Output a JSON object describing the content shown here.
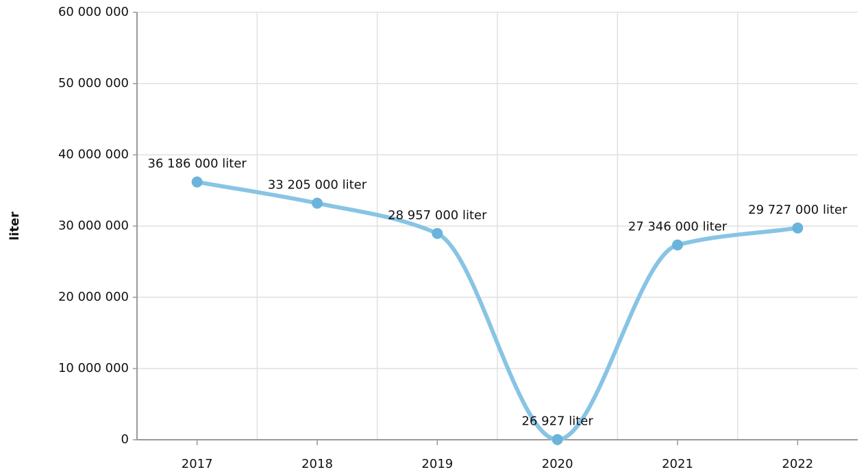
{
  "chart_data": {
    "type": "line",
    "y_label": "liter",
    "categories": [
      "2017",
      "2018",
      "2019",
      "2020",
      "2021",
      "2022"
    ],
    "series": [
      {
        "name": "liter",
        "color": "#88c4e4",
        "marker_color": "#6ab4dc",
        "values": [
          36186000,
          33205000,
          28957000,
          26927,
          27346000,
          29727000
        ],
        "value_labels": [
          "36 186 000 liter",
          "33 205 000 liter",
          "28 957 000 liter",
          "26 927 liter",
          "27 346 000 liter",
          "29 727 000 liter"
        ]
      }
    ],
    "ylim": [
      0,
      60000000
    ],
    "yticks": [
      0,
      {
        "value": 10000000,
        "label": "10 000 000"
      },
      {
        "value": 20000000,
        "label": "20 000 000"
      },
      {
        "value": 30000000,
        "label": "30 000 000"
      },
      {
        "value": 40000000,
        "label": "40 000 000"
      },
      {
        "value": 50000000,
        "label": "50 000 000"
      },
      {
        "value": 60000000,
        "label": "60 000 000"
      }
    ],
    "grid": true
  }
}
